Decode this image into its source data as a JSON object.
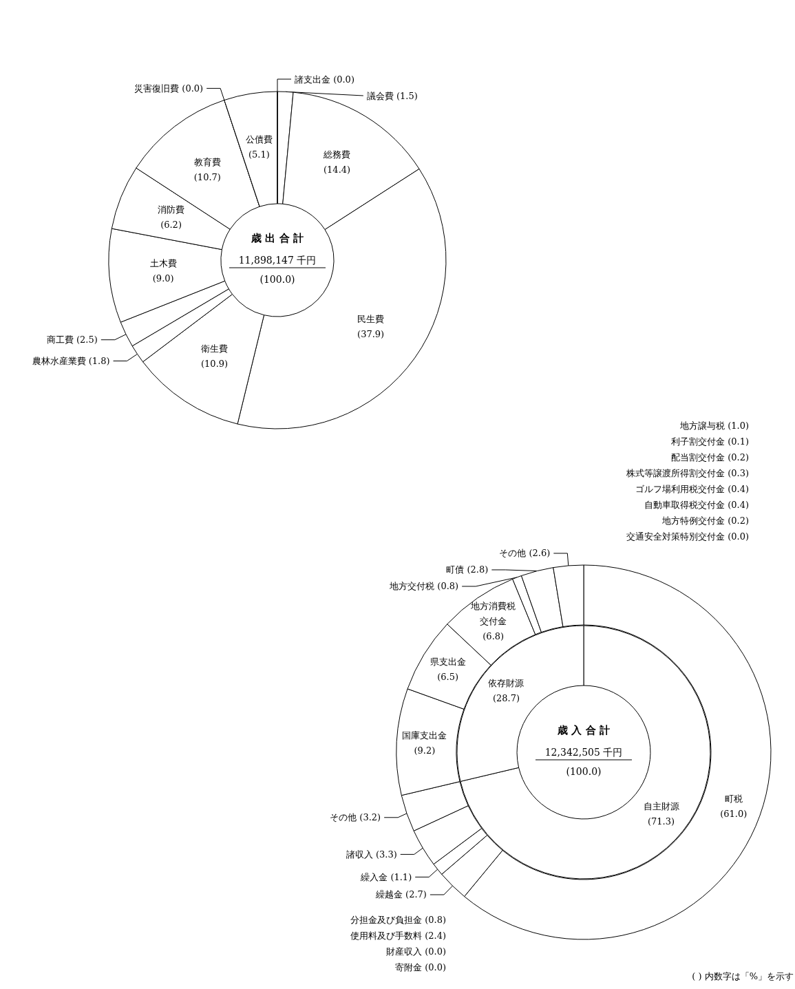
{
  "chart_data": [
    {
      "type": "donut",
      "title": "歳出合計",
      "subtitle": "11,898,147 千円",
      "annotations": [
        "(100.0)"
      ],
      "color": "#ffffff",
      "categories": [
        "議会費",
        "総務費",
        "民生費",
        "衛生費",
        "農林水産業費",
        "商工費",
        "土木費",
        "消防費",
        "教育費",
        "災害復旧費",
        "公債費",
        "諸支出金"
      ],
      "values": [
        1.5,
        14.4,
        37.9,
        10.9,
        1.8,
        2.5,
        9.0,
        6.2,
        10.7,
        0.0,
        5.1,
        0.0
      ],
      "value_labels": [
        "(1.5)",
        "(14.4)",
        "(37.9)",
        "(10.9)",
        "(1.8)",
        "(2.5)",
        "(9.0)",
        "(6.2)",
        "(10.7)",
        "(0.0)",
        "(5.1)",
        "(0.0)"
      ]
    },
    {
      "type": "donut",
      "color": "#ffffff",
      "annotations": [
        "地方譲与税 (1.0)",
        "利子割交付金 (0.1)",
        "配当割交付金 (0.2)",
        "株式等譲渡所得割交付金 (0.3)",
        "ゴルフ場利用税交付金 (0.4)",
        "自動車取得税交付金 (0.4)",
        "地方特例交付金 (0.2)",
        "交通安全対策特別交付金 (0.0)",
        "分担金及び負担金 (0.8)",
        "使用料及び手数料 (2.4)",
        "財産収入 (0.0)",
        "寄附金 (0.0)",
        "( ) 内数字は「%」を示す"
      ],
      "categories": [
        "町税",
        "繰越金",
        "繰入金",
        "諸収入",
        "その他",
        "国庫支出金",
        "県支出金",
        "地方消費税交付金",
        "地方交付税",
        "町債",
        "その他"
      ],
      "values": [
        61.0,
        2.7,
        1.1,
        3.3,
        3.2,
        9.2,
        6.5,
        6.8,
        0.8,
        2.8,
        2.6
      ],
      "value_labels": [
        "(61.0)",
        "(2.7)",
        "(1.1)",
        "(3.3)",
        "(3.2)",
        "(9.2)",
        "(6.5)",
        "(6.8)",
        "(0.8)",
        "(2.8)",
        "(2.6)"
      ]
    },
    {
      "type": "donut",
      "title": "歳入合計",
      "subtitle": "12,342,505 千円",
      "annotations": [
        "(100.0)"
      ],
      "color": "#ffffff",
      "categories": [
        "自主財源",
        "依存財源"
      ],
      "values": [
        71.3,
        28.7
      ],
      "value_labels": [
        "(71.3)",
        "(28.7)"
      ]
    }
  ]
}
